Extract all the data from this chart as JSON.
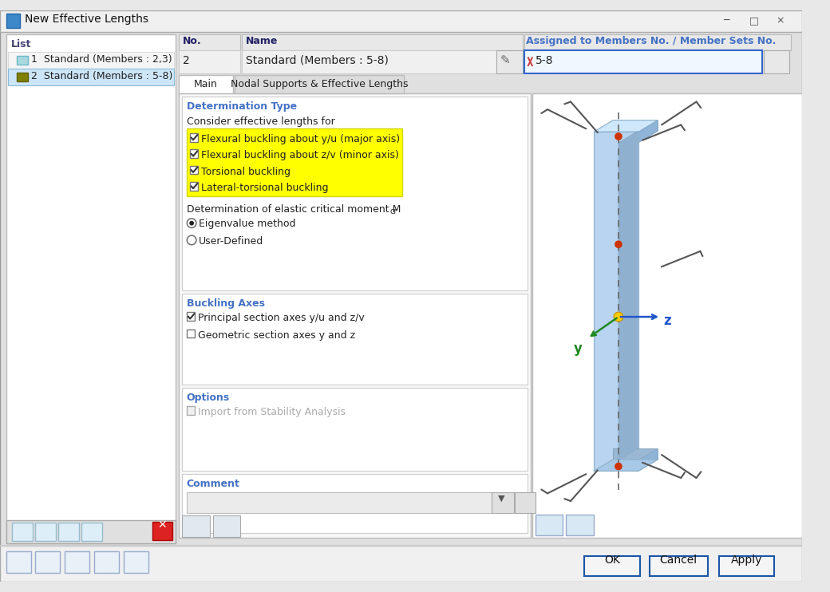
{
  "title": "New Effective Lengths",
  "bg_color": "#e8e8e8",
  "panel_bg": "#f5f5f5",
  "white": "#ffffff",
  "light_gray": "#ebebeb",
  "selected_blue": "#cce5f7",
  "yellow": "#ffff00",
  "tabs": [
    "Main",
    "Nodal Supports & Effective Lengths"
  ],
  "section_determination": "Determination Type",
  "consider_text": "Consider effective lengths for",
  "checkboxes_yellow": [
    "Flexural buckling about y/u (major axis)",
    "Flexural buckling about z/v (minor axis)",
    "Torsional buckling",
    "Lateral-torsional buckling"
  ],
  "radio_options": [
    "Eigenvalue method",
    "User-Defined"
  ],
  "radio_selected": 0,
  "section_buckling": "Buckling Axes",
  "buckling_checkboxes": [
    {
      "text": "Principal section axes y/u and z/v",
      "checked": true
    },
    {
      "text": "Geometric section axes y and z",
      "checked": false
    }
  ],
  "section_options": "Options",
  "options_checkboxes": [
    {
      "text": "Import from Stability Analysis",
      "checked": false,
      "disabled": true
    }
  ],
  "section_comment": "Comment",
  "btn_ok": "OK",
  "btn_cancel": "Cancel",
  "btn_apply": "Apply",
  "no_value": "2",
  "name_value": "Standard (Members : 5-8)",
  "assigned_value": "5-8"
}
